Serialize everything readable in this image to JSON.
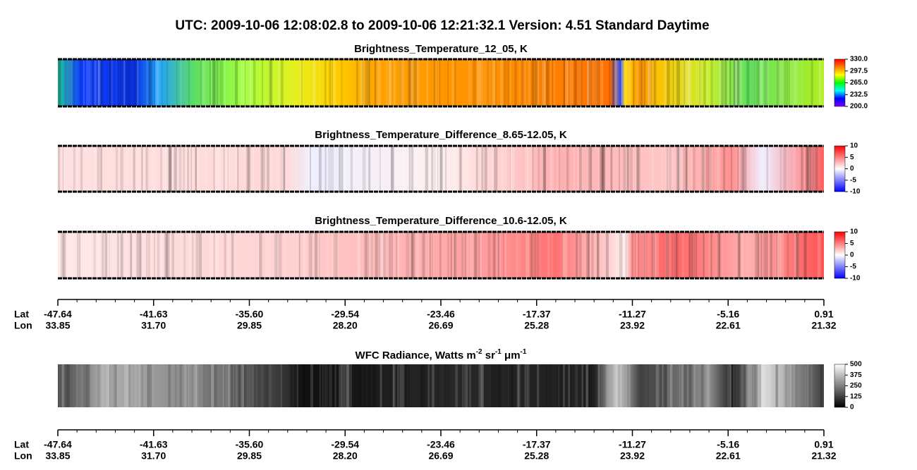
{
  "title": "UTC:  2009-10-06   12:08:02.8  to  2009-10-06   12:21:32.1    Version: 4.51  Standard Daytime",
  "chart_data": [
    {
      "type": "heatmap",
      "title": "Brightness_Temperature_12_05, K",
      "colormap": "rainbow",
      "clim": [
        200,
        330
      ],
      "cticks": [
        {
          "value": 330,
          "label": "330.0"
        },
        {
          "value": 297.5,
          "label": "297.5"
        },
        {
          "value": 265,
          "label": "265.0"
        },
        {
          "value": 232.5,
          "label": "232.5"
        },
        {
          "value": 200,
          "label": "200.0"
        }
      ]
    },
    {
      "type": "heatmap",
      "title": "Brightness_Temperature_Difference_8.65-12.05, K",
      "colormap": "bwr",
      "clim": [
        -10,
        10
      ],
      "cticks": [
        10,
        5,
        0,
        -5,
        -10
      ]
    },
    {
      "type": "heatmap",
      "title": "Brightness_Temperature_Difference_10.6-12.05, K",
      "colormap": "bwr",
      "clim": [
        -10,
        10
      ],
      "cticks": [
        10,
        5,
        0,
        -5,
        -10
      ]
    },
    {
      "type": "axis",
      "row_labels": [
        "Lat",
        "Lon"
      ],
      "lat": [
        -47.64,
        -41.63,
        -35.6,
        -29.54,
        -23.46,
        -17.37,
        -11.27,
        -5.16,
        0.91
      ],
      "lat_labels": [
        "-47.64",
        "-41.63",
        "-35.60",
        "-29.54",
        "-23.46",
        "-17.37",
        "-11.27",
        "-5.16",
        "0.91"
      ],
      "lon": [
        33.85,
        31.7,
        29.85,
        28.2,
        26.69,
        25.28,
        23.92,
        22.61,
        21.32
      ],
      "lon_labels": [
        "33.85",
        "31.70",
        "29.85",
        "28.20",
        "26.69",
        "25.28",
        "23.92",
        "22.61",
        "21.32"
      ]
    },
    {
      "type": "heatmap",
      "title": [
        "WFC Radiance, Watts m",
        "-2",
        " sr",
        "-1",
        " μm",
        "-1"
      ],
      "colormap": "gray",
      "clim": [
        0,
        500
      ],
      "cticks": [
        500,
        375,
        250,
        125,
        0
      ]
    },
    {
      "type": "axis",
      "row_labels": [
        "Lat",
        "Lon"
      ],
      "lat": [
        -47.64,
        -41.63,
        -35.6,
        -29.54,
        -23.46,
        -17.37,
        -11.27,
        -5.16,
        0.91
      ],
      "lat_labels": [
        "-47.64",
        "-41.63",
        "-35.60",
        "-29.54",
        "-23.46",
        "-17.37",
        "-11.27",
        "-5.16",
        "0.91"
      ],
      "lon": [
        33.85,
        31.7,
        29.85,
        28.2,
        26.69,
        25.28,
        23.92,
        22.61,
        21.32
      ],
      "lon_labels": [
        "33.85",
        "31.70",
        "29.85",
        "28.20",
        "26.69",
        "25.28",
        "23.92",
        "22.61",
        "21.32"
      ]
    }
  ]
}
